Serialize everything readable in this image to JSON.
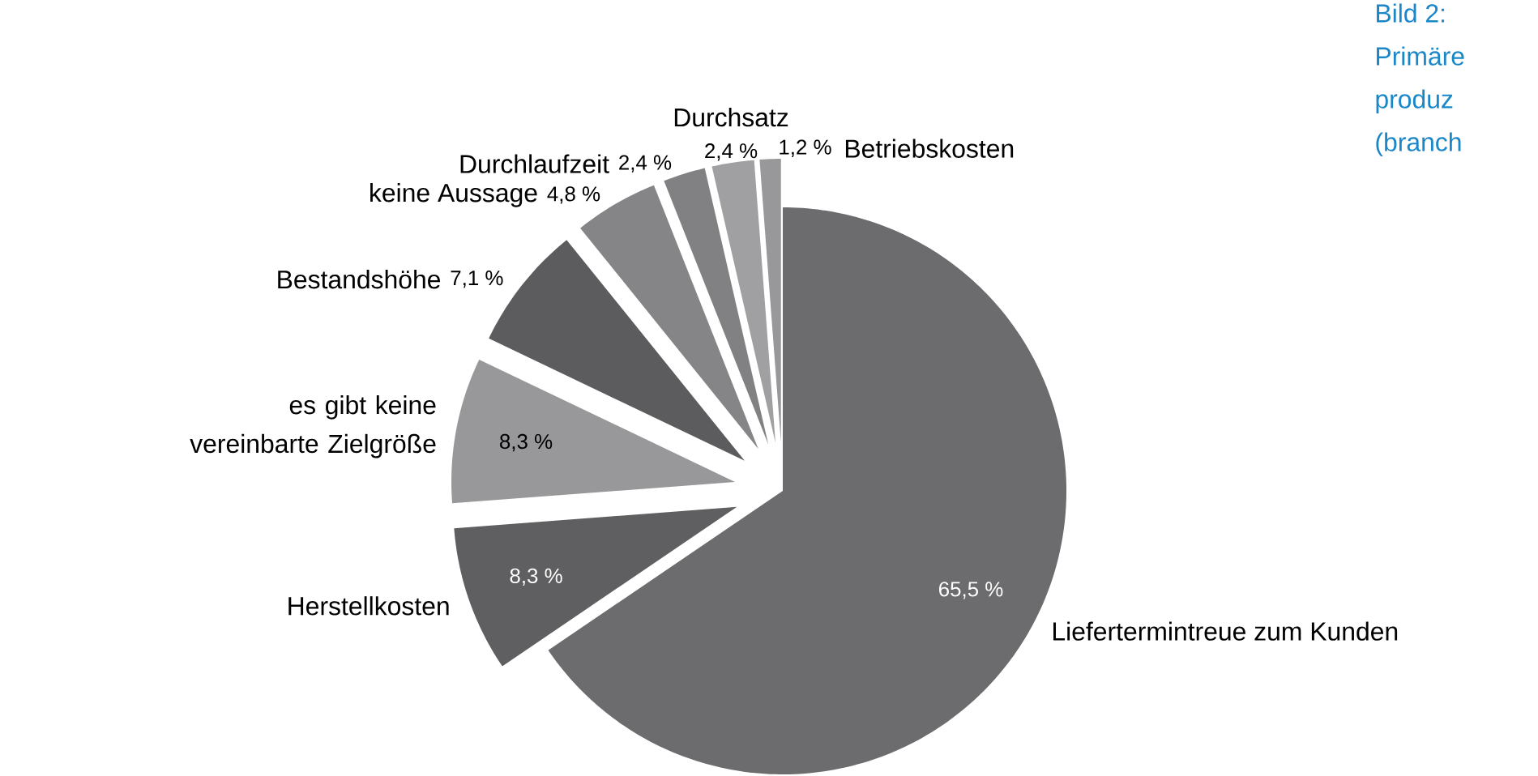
{
  "chart_data": {
    "type": "pie",
    "categories": [
      "Liefertermintreue zum Kunden",
      "Herstellkosten",
      "es gibt keine vereinbarte Zielgröße",
      "Bestandshöhe",
      "keine Aussage",
      "Durchlaufzeit",
      "Durchsatz",
      "Betriebskosten"
    ],
    "values": [
      65.5,
      8.3,
      8.3,
      7.1,
      4.8,
      2.4,
      2.4,
      1.2
    ],
    "colors": [
      "#6c6c6e",
      "#5f5f61",
      "#98989a",
      "#5c5c5e",
      "#858587",
      "#818183",
      "#a0a0a2",
      "#98989a"
    ],
    "value_labels": [
      "65,5 %",
      "8,3 %",
      "8,3 %",
      "7,1 %",
      "4,8 %",
      "2,4 %",
      "2,4 %",
      "1,2 %"
    ],
    "annotations": [
      "Bild 2:",
      "Primäre",
      "produz",
      "(branch"
    ]
  }
}
